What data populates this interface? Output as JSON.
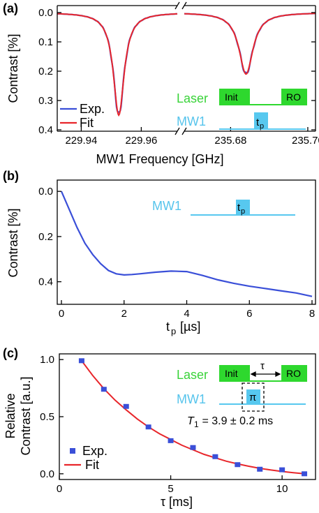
{
  "colors": {
    "exp": "#3a4fd8",
    "fit": "#e8262b",
    "laser": "#2ed82e",
    "mw": "#57c8ef",
    "inset_text_laser": "#39d339",
    "inset_text_mw": "#56c4ec"
  },
  "panels": {
    "a": {
      "label": "(a)",
      "xlabel": "MW1 Frequency [GHz]",
      "ylabel": "Contrast [%]",
      "legend": {
        "exp": "Exp.",
        "fit": "Fit"
      },
      "inset": {
        "laser_label": "Laser",
        "init": "Init",
        "ro": "RO",
        "mw_label": "MW1",
        "pulse_main": "t",
        "pulse_sub": "p"
      }
    },
    "b": {
      "label": "(b)",
      "xlabel_main": "t",
      "xlabel_sub": "p",
      "xlabel_unit": " [µs]",
      "ylabel": "Contrast [%]",
      "inset": {
        "mw_label": "MW1",
        "pulse_main": "t",
        "pulse_sub": "p"
      }
    },
    "c": {
      "label": "(c)",
      "xlabel": "τ [ms]",
      "ylabel_line1": "Relative",
      "ylabel_line2": "Contrast [a.u.]",
      "legend": {
        "exp": "Exp.",
        "fit": "Fit"
      },
      "inset": {
        "laser_label": "Laser",
        "init": "Init",
        "tau": "τ",
        "ro": "RO",
        "mw_label": "MW1",
        "pi": "π"
      },
      "t1_main": "T",
      "t1_sub": "1",
      "t1_value": " = 3.9 ± 0.2 ms"
    }
  },
  "chart_data": [
    {
      "type": "line",
      "panel": "a",
      "x_ticks_left": [
        "229.94",
        "229.96"
      ],
      "x_ticks_right": [
        "235.68",
        "235.70"
      ],
      "x_range_left": [
        229.932,
        229.972
      ],
      "x_range_right": [
        235.668,
        235.702
      ],
      "y_ticks": [
        "0.0",
        "0.1",
        "0.2",
        "0.3",
        "0.4"
      ],
      "ylim": [
        0.4,
        0.0
      ],
      "dips": [
        {
          "segment": "left",
          "center_ghz": 229.9525,
          "depth_pct": 0.35,
          "hwhm_ghz": 0.0022
        },
        {
          "segment": "right",
          "center_ghz": 235.684,
          "depth_pct": 0.21,
          "hwhm_ghz": 0.0022
        }
      ],
      "series": [
        {
          "name": "Exp.",
          "color": "#3a4fd8"
        },
        {
          "name": "Fit",
          "color": "#e8262b"
        }
      ]
    },
    {
      "type": "line",
      "panel": "b",
      "xlim": [
        0,
        8
      ],
      "x_ticks": [
        "0",
        "2",
        "4",
        "6",
        "8"
      ],
      "ylim": [
        0.5,
        -0.05
      ],
      "y_ticks": [
        "0.0",
        "0.2",
        "0.4"
      ],
      "series": [
        {
          "color": "#3a4fd8",
          "x": [
            0,
            0.25,
            0.5,
            0.75,
            1.0,
            1.25,
            1.5,
            1.75,
            2.0,
            2.25,
            2.5,
            3.0,
            3.5,
            4.0,
            4.5,
            5.0,
            5.5,
            6.0,
            6.5,
            7.0,
            7.5,
            8.0
          ],
          "y": [
            0.0,
            0.08,
            0.16,
            0.23,
            0.28,
            0.32,
            0.35,
            0.365,
            0.37,
            0.368,
            0.365,
            0.358,
            0.353,
            0.355,
            0.372,
            0.392,
            0.407,
            0.42,
            0.43,
            0.44,
            0.45,
            0.465
          ]
        }
      ]
    },
    {
      "type": "scatter",
      "panel": "c",
      "xlim": [
        0,
        11.5
      ],
      "x_ticks": [
        "0",
        "5",
        "10"
      ],
      "ylim": [
        -0.05,
        1.05
      ],
      "y_ticks": [
        "0.0",
        "0.5",
        "1.0"
      ],
      "series": [
        {
          "name": "Exp.",
          "color": "#3a4fd8",
          "x": [
            1,
            2,
            3,
            4,
            5,
            6,
            7,
            8,
            9,
            10,
            11
          ],
          "y": [
            0.99,
            0.74,
            0.59,
            0.41,
            0.29,
            0.23,
            0.15,
            0.08,
            0.04,
            0.035,
            0.0
          ]
        },
        {
          "name": "Fit",
          "color": "#e8262b",
          "x": [
            1,
            1.5,
            2,
            2.5,
            3,
            3.5,
            4,
            4.5,
            5,
            5.5,
            6,
            6.5,
            7,
            7.5,
            8,
            8.5,
            9,
            9.5,
            10,
            10.5,
            11
          ],
          "y": [
            0.99,
            0.86,
            0.745,
            0.645,
            0.56,
            0.48,
            0.41,
            0.35,
            0.3,
            0.25,
            0.21,
            0.17,
            0.14,
            0.11,
            0.087,
            0.066,
            0.048,
            0.033,
            0.02,
            0.009,
            0.0
          ]
        }
      ]
    }
  ]
}
